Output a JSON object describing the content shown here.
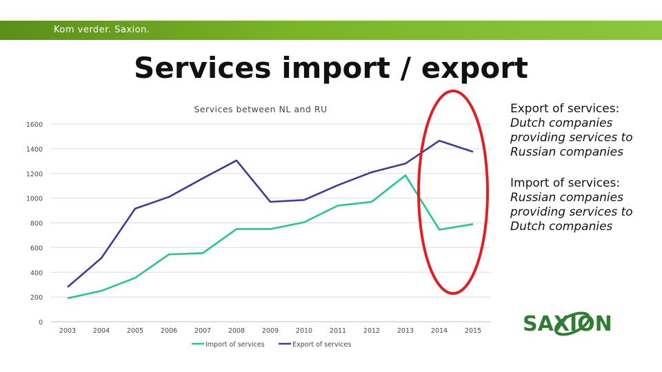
{
  "header": {
    "tagline": "Kom verder. Saxion."
  },
  "slide": {
    "title": "Services import / export"
  },
  "annotations": {
    "export_heading": "Export of services:",
    "export_body": [
      "Dutch companies",
      "providing services to",
      "Russian companies"
    ],
    "import_heading": "Import of services:",
    "import_body": [
      "Russian companies",
      "providing services to",
      "Dutch companies"
    ]
  },
  "logo": {
    "text": "SAXION",
    "color": "#2e7d32"
  },
  "highlight": {
    "color": "#e02020"
  },
  "chart_data": {
    "type": "line",
    "title": "Services between NL and RU",
    "xlabel": "",
    "ylabel": "",
    "categories": [
      "2003",
      "2004",
      "2005",
      "2006",
      "2007",
      "2008",
      "2009",
      "2010",
      "2011",
      "2012",
      "2013",
      "2014",
      "2015"
    ],
    "ylim": [
      0,
      1600
    ],
    "yticks": [
      0,
      200,
      400,
      600,
      800,
      1000,
      1200,
      1400,
      1600
    ],
    "grid": true,
    "legend": "bottom",
    "series": [
      {
        "name": "Import of services",
        "color": "#1fc98e",
        "values": [
          190,
          250,
          355,
          545,
          555,
          750,
          750,
          805,
          940,
          970,
          1185,
          745,
          790
        ]
      },
      {
        "name": "Export of services",
        "color": "#3a3aa0",
        "values": [
          280,
          515,
          915,
          1010,
          1160,
          1305,
          970,
          985,
          1105,
          1210,
          1280,
          1465,
          1375
        ]
      }
    ]
  }
}
